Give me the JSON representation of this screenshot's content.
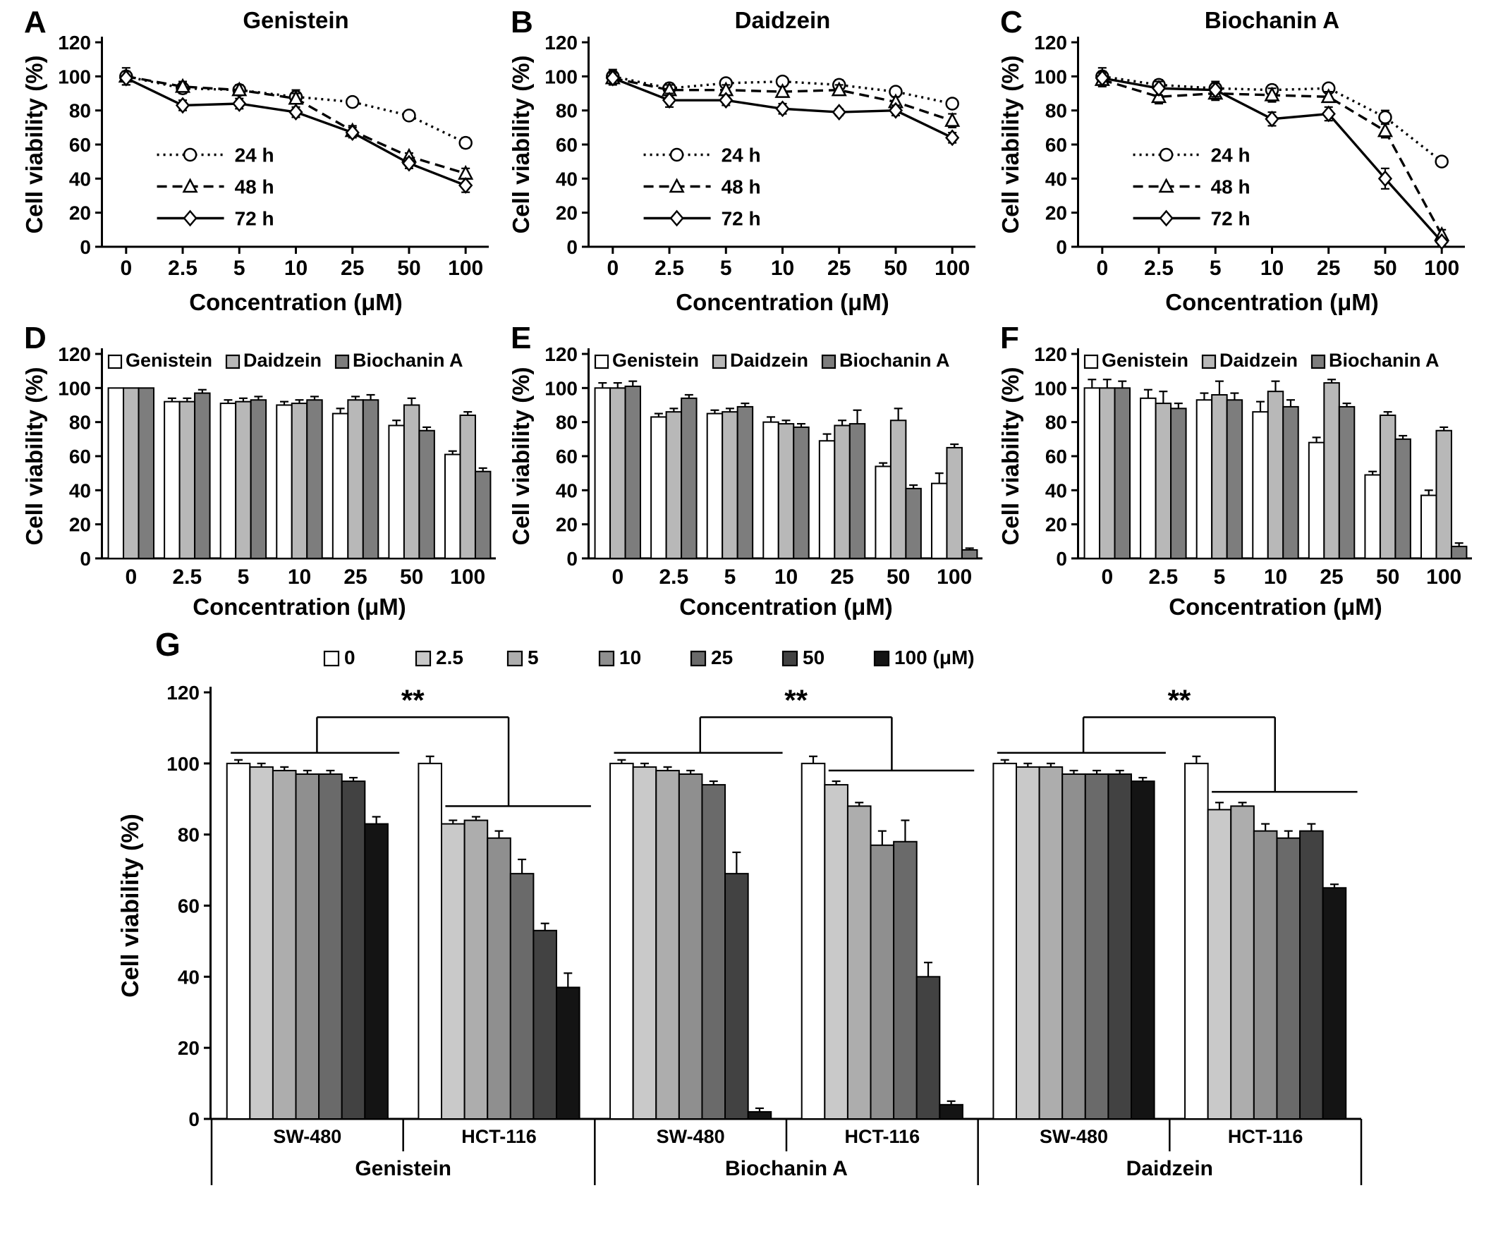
{
  "figure": {
    "ylabel": "Cell viability (%)",
    "xlabel": "Concentration (μM)",
    "concentrations": [
      "0",
      "2.5",
      "5",
      "10",
      "25",
      "50",
      "100"
    ]
  },
  "chart_data": [
    {
      "panel": "A",
      "type": "line",
      "title": "Genistein",
      "ylabel": "Cell viability (%)",
      "xlabel": "Concentration (μM)",
      "categories": [
        "0",
        "2.5",
        "5",
        "10",
        "25",
        "50",
        "100"
      ],
      "ylim": [
        0,
        120
      ],
      "ytick_step": 20,
      "legend_position": "inside-left",
      "series": [
        {
          "name": "24 h",
          "linestyle": "dotted",
          "marker": "circle",
          "values": [
            100,
            93,
            92,
            88,
            85,
            77,
            61
          ],
          "err": [
            5,
            3,
            3,
            4,
            2,
            2,
            3
          ]
        },
        {
          "name": "48 h",
          "linestyle": "dashed",
          "marker": "triangle",
          "values": [
            100,
            94,
            92,
            87,
            68,
            53,
            43
          ],
          "err": [
            3,
            3,
            3,
            3,
            3,
            2,
            3
          ]
        },
        {
          "name": "72 h",
          "linestyle": "solid",
          "marker": "diamond",
          "values": [
            99,
            83,
            84,
            79,
            67,
            49,
            36
          ],
          "err": [
            4,
            3,
            3,
            3,
            3,
            3,
            4
          ]
        }
      ]
    },
    {
      "panel": "B",
      "type": "line",
      "title": "Daidzein",
      "ylabel": "Cell viability (%)",
      "xlabel": "Concentration (μM)",
      "categories": [
        "0",
        "2.5",
        "5",
        "10",
        "25",
        "50",
        "100"
      ],
      "ylim": [
        0,
        120
      ],
      "ytick_step": 20,
      "legend_position": "inside-left",
      "series": [
        {
          "name": "24 h",
          "linestyle": "dotted",
          "marker": "circle",
          "values": [
            100,
            93,
            96,
            97,
            95,
            91,
            84
          ],
          "err": [
            4,
            3,
            2,
            2,
            3,
            2,
            2
          ]
        },
        {
          "name": "48 h",
          "linestyle": "dashed",
          "marker": "triangle",
          "values": [
            99,
            92,
            92,
            91,
            92,
            85,
            74
          ],
          "err": [
            4,
            3,
            3,
            3,
            3,
            3,
            4
          ]
        },
        {
          "name": "72 h",
          "linestyle": "solid",
          "marker": "diamond",
          "values": [
            99,
            86,
            86,
            81,
            79,
            80,
            64
          ],
          "err": [
            3,
            4,
            3,
            3,
            2,
            3,
            3
          ]
        }
      ]
    },
    {
      "panel": "C",
      "type": "line",
      "title": "Biochanin A",
      "ylabel": "Cell viability (%)",
      "xlabel": "Concentration (μM)",
      "categories": [
        "0",
        "2.5",
        "5",
        "10",
        "25",
        "50",
        "100"
      ],
      "ylim": [
        0,
        120
      ],
      "ytick_step": 20,
      "legend_position": "inside-left",
      "series": [
        {
          "name": "24 h",
          "linestyle": "dotted",
          "marker": "circle",
          "values": [
            100,
            95,
            93,
            92,
            93,
            76,
            50
          ],
          "err": [
            5,
            3,
            4,
            3,
            2,
            4,
            2
          ]
        },
        {
          "name": "48 h",
          "linestyle": "dashed",
          "marker": "triangle",
          "values": [
            98,
            88,
            90,
            89,
            88,
            68,
            7
          ],
          "err": [
            4,
            4,
            4,
            4,
            3,
            4,
            3
          ]
        },
        {
          "name": "72 h",
          "linestyle": "solid",
          "marker": "diamond",
          "values": [
            99,
            93,
            92,
            75,
            78,
            40,
            3
          ],
          "err": [
            4,
            4,
            4,
            4,
            4,
            6,
            2
          ]
        }
      ]
    },
    {
      "panel": "D",
      "type": "bar",
      "ylabel": "Cell viability (%)",
      "xlabel": "Concentration (μM)",
      "categories": [
        "0",
        "2.5",
        "5",
        "10",
        "25",
        "50",
        "100"
      ],
      "ylim": [
        0,
        120
      ],
      "ytick_step": 20,
      "legend_position": "inside-top",
      "series": [
        {
          "name": "Genistein",
          "color": "#ffffff",
          "values": [
            100,
            92,
            91,
            90,
            85,
            78,
            61
          ],
          "err": [
            0,
            2,
            2,
            2,
            3,
            3,
            2
          ]
        },
        {
          "name": "Daidzein",
          "color": "#b8b8b8",
          "values": [
            100,
            92,
            92,
            91,
            93,
            90,
            84
          ],
          "err": [
            0,
            2,
            2,
            2,
            2,
            4,
            2
          ]
        },
        {
          "name": "Biochanin A",
          "color": "#7d7d7d",
          "values": [
            100,
            97,
            93,
            93,
            93,
            75,
            51
          ],
          "err": [
            0,
            2,
            2,
            2,
            3,
            2,
            2
          ]
        }
      ]
    },
    {
      "panel": "E",
      "type": "bar",
      "ylabel": "Cell viability (%)",
      "xlabel": "Concentration (μM)",
      "categories": [
        "0",
        "2.5",
        "5",
        "10",
        "25",
        "50",
        "100"
      ],
      "ylim": [
        0,
        120
      ],
      "ytick_step": 20,
      "legend_position": "inside-top",
      "series": [
        {
          "name": "Genistein",
          "color": "#ffffff",
          "values": [
            100,
            83,
            85,
            80,
            69,
            54,
            44
          ],
          "err": [
            3,
            2,
            2,
            3,
            4,
            2,
            6
          ]
        },
        {
          "name": "Daidzein",
          "color": "#b8b8b8",
          "values": [
            100,
            86,
            86,
            79,
            78,
            81,
            65
          ],
          "err": [
            3,
            2,
            2,
            2,
            3,
            7,
            2
          ]
        },
        {
          "name": "Biochanin A",
          "color": "#7d7d7d",
          "values": [
            101,
            94,
            89,
            77,
            79,
            41,
            5
          ],
          "err": [
            3,
            2,
            2,
            2,
            8,
            2,
            1
          ]
        }
      ]
    },
    {
      "panel": "F",
      "type": "bar",
      "ylabel": "Cell viability (%)",
      "xlabel": "Concentration (μM)",
      "categories": [
        "0",
        "2.5",
        "5",
        "10",
        "25",
        "50",
        "100"
      ],
      "ylim": [
        0,
        120
      ],
      "ytick_step": 20,
      "legend_position": "inside-top",
      "series": [
        {
          "name": "Genistein",
          "color": "#ffffff",
          "values": [
            100,
            94,
            93,
            86,
            68,
            49,
            37
          ],
          "err": [
            5,
            5,
            4,
            6,
            3,
            2,
            3
          ]
        },
        {
          "name": "Daidzein",
          "color": "#b8b8b8",
          "values": [
            100,
            91,
            96,
            98,
            103,
            84,
            75
          ],
          "err": [
            5,
            7,
            8,
            6,
            2,
            2,
            2
          ]
        },
        {
          "name": "Biochanin A",
          "color": "#7d7d7d",
          "values": [
            100,
            88,
            93,
            89,
            89,
            70,
            7
          ],
          "err": [
            4,
            3,
            4,
            4,
            2,
            2,
            2
          ]
        }
      ]
    },
    {
      "panel": "G",
      "type": "grouped-bar",
      "ylabel": "Cell viability (%)",
      "ylim": [
        0,
        120
      ],
      "ytick_step": 20,
      "legend_position": "top",
      "legend": {
        "labels": [
          "0",
          "2.5",
          "5",
          "10",
          "25",
          "50",
          "100 (μM)"
        ],
        "colors": [
          "#ffffff",
          "#c9c9c9",
          "#adadad",
          "#8f8f8f",
          "#6a6a6a",
          "#424242",
          "#141414"
        ]
      },
      "compounds": [
        {
          "name": "Genistein",
          "sig": "**",
          "groups": [
            {
              "cell": "SW-480",
              "values": [
                100,
                99,
                98,
                97,
                97,
                95,
                83
              ],
              "err": [
                1,
                1,
                1,
                1,
                1,
                1,
                2
              ]
            },
            {
              "cell": "HCT-116",
              "values": [
                100,
                83,
                84,
                79,
                69,
                53,
                37
              ],
              "err": [
                2,
                1,
                1,
                2,
                4,
                2,
                4
              ]
            }
          ]
        },
        {
          "name": "Biochanin A",
          "sig": "**",
          "groups": [
            {
              "cell": "SW-480",
              "values": [
                100,
                99,
                98,
                97,
                94,
                69,
                2
              ],
              "err": [
                1,
                1,
                1,
                1,
                1,
                6,
                1
              ]
            },
            {
              "cell": "HCT-116",
              "values": [
                100,
                94,
                88,
                77,
                78,
                40,
                4
              ],
              "err": [
                2,
                1,
                1,
                4,
                6,
                4,
                1
              ]
            }
          ]
        },
        {
          "name": "Daidzein",
          "sig": "**",
          "groups": [
            {
              "cell": "SW-480",
              "values": [
                100,
                99,
                99,
                97,
                97,
                97,
                95
              ],
              "err": [
                1,
                1,
                1,
                1,
                1,
                1,
                1
              ]
            },
            {
              "cell": "HCT-116",
              "values": [
                100,
                87,
                88,
                81,
                79,
                81,
                65
              ],
              "err": [
                2,
                2,
                1,
                2,
                2,
                2,
                1
              ]
            }
          ]
        }
      ]
    }
  ]
}
